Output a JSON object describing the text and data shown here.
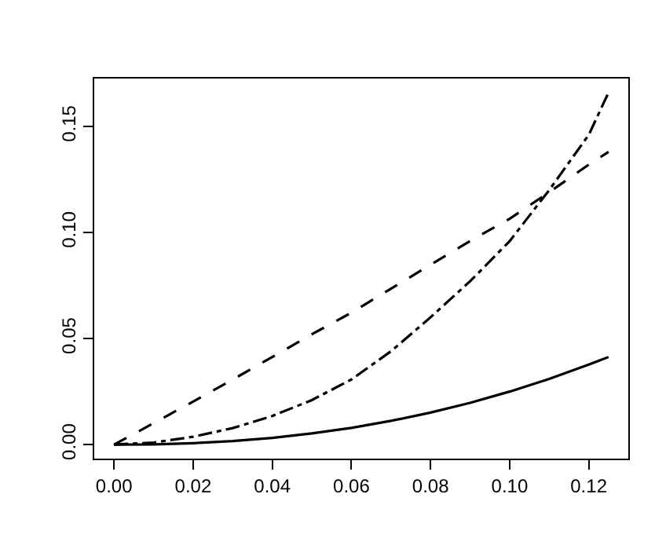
{
  "chart_data": {
    "type": "line",
    "x": [
      0,
      0.01,
      0.02,
      0.03,
      0.04,
      0.05,
      0.06,
      0.07,
      0.08,
      0.09,
      0.1,
      0.11,
      0.12,
      0.125
    ],
    "series": [
      {
        "color": "#000000",
        "line_style": "solid",
        "values": [
          0,
          0.0001,
          0.0007,
          0.0017,
          0.0032,
          0.0053,
          0.0079,
          0.0112,
          0.0151,
          0.0197,
          0.025,
          0.031,
          0.0377,
          0.0413
        ]
      },
      {
        "color": "#000000",
        "line_style": "dashed",
        "values": [
          0,
          0.0101,
          0.0203,
          0.0307,
          0.0413,
          0.052,
          0.0622,
          0.0735,
          0.0848,
          0.096,
          0.1065,
          0.119,
          0.132,
          0.138
        ]
      },
      {
        "color": "#000000",
        "line_style": "dashdot",
        "values": [
          0,
          0.001,
          0.0037,
          0.0078,
          0.0135,
          0.021,
          0.0307,
          0.044,
          0.06,
          0.077,
          0.0959,
          0.12,
          0.146,
          0.166
        ]
      }
    ],
    "xlim": [
      -0.005,
      0.13
    ],
    "xticks": [
      {
        "value": 0,
        "label": "0.00"
      },
      0.02,
      0.04,
      0.06,
      0.08,
      {
        "value": 0.1,
        "label": "0.10"
      },
      0.12
    ],
    "ylim": [
      -0.0066,
      0.1726
    ],
    "yticks": [
      {
        "value": 0,
        "label": "0.00"
      },
      0.05,
      {
        "value": 0.1,
        "label": "0.10"
      },
      0.15
    ],
    "marker": "none"
  }
}
